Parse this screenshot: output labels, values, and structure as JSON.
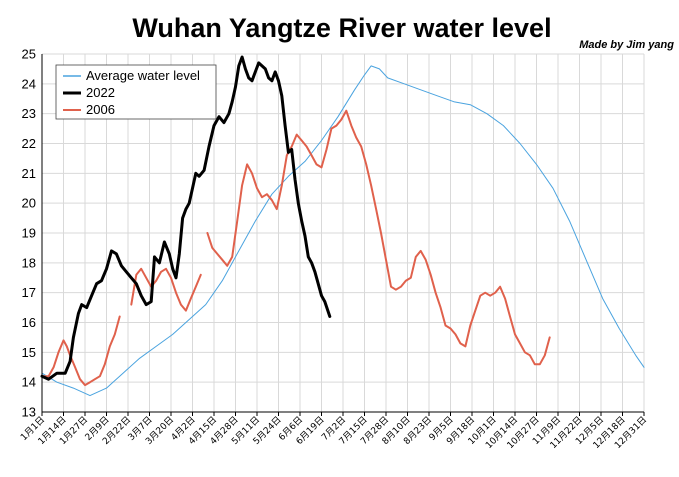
{
  "chart_data": {
    "type": "line",
    "title": "Wuhan Yangtze River water level",
    "credit": "Made by Jim yang",
    "xlabel": "",
    "ylabel": "",
    "ylim": [
      13,
      25
    ],
    "yticks": [
      "13",
      "14",
      "15",
      "16",
      "17",
      "18",
      "19",
      "20",
      "21",
      "22",
      "23",
      "24",
      "25"
    ],
    "xlim": [
      1,
      365
    ],
    "grid": true,
    "legend_position": "top-left",
    "xticks": [
      {
        "day": 1,
        "label": "1月1日"
      },
      {
        "day": 14,
        "label": "1月14日"
      },
      {
        "day": 27,
        "label": "1月27日"
      },
      {
        "day": 40,
        "label": "2月9日"
      },
      {
        "day": 53,
        "label": "2月22日"
      },
      {
        "day": 66,
        "label": "3月7日"
      },
      {
        "day": 79,
        "label": "3月20日"
      },
      {
        "day": 92,
        "label": "4月2日"
      },
      {
        "day": 105,
        "label": "4月15日"
      },
      {
        "day": 118,
        "label": "4月28日"
      },
      {
        "day": 131,
        "label": "5月11日"
      },
      {
        "day": 144,
        "label": "5月24日"
      },
      {
        "day": 157,
        "label": "6月6日"
      },
      {
        "day": 170,
        "label": "6月19日"
      },
      {
        "day": 183,
        "label": "7月2日"
      },
      {
        "day": 196,
        "label": "7月15日"
      },
      {
        "day": 209,
        "label": "7月28日"
      },
      {
        "day": 222,
        "label": "8月10日"
      },
      {
        "day": 235,
        "label": "8月23日"
      },
      {
        "day": 248,
        "label": "9月5日"
      },
      {
        "day": 261,
        "label": "9月18日"
      },
      {
        "day": 274,
        "label": "10月1日"
      },
      {
        "day": 287,
        "label": "10月14日"
      },
      {
        "day": 300,
        "label": "10月27日"
      },
      {
        "day": 313,
        "label": "11月9日"
      },
      {
        "day": 326,
        "label": "11月22日"
      },
      {
        "day": 339,
        "label": "12月5日"
      },
      {
        "day": 352,
        "label": "12月18日"
      },
      {
        "day": 365,
        "label": "12月31日"
      }
    ],
    "series": [
      {
        "name": "Average water level",
        "color": "#4aa3df",
        "width": 1,
        "points": [
          [
            1,
            14.3
          ],
          [
            10,
            14.0
          ],
          [
            20,
            13.8
          ],
          [
            30,
            13.55
          ],
          [
            40,
            13.8
          ],
          [
            50,
            14.3
          ],
          [
            60,
            14.8
          ],
          [
            70,
            15.2
          ],
          [
            80,
            15.6
          ],
          [
            90,
            16.1
          ],
          [
            100,
            16.6
          ],
          [
            110,
            17.4
          ],
          [
            120,
            18.4
          ],
          [
            130,
            19.4
          ],
          [
            140,
            20.3
          ],
          [
            150,
            20.9
          ],
          [
            160,
            21.4
          ],
          [
            170,
            22.1
          ],
          [
            180,
            22.9
          ],
          [
            190,
            23.8
          ],
          [
            196,
            24.3
          ],
          [
            200,
            24.6
          ],
          [
            205,
            24.5
          ],
          [
            210,
            24.2
          ],
          [
            220,
            24.0
          ],
          [
            230,
            23.8
          ],
          [
            240,
            23.6
          ],
          [
            250,
            23.4
          ],
          [
            260,
            23.3
          ],
          [
            270,
            23.0
          ],
          [
            280,
            22.6
          ],
          [
            290,
            22.0
          ],
          [
            300,
            21.3
          ],
          [
            310,
            20.5
          ],
          [
            320,
            19.4
          ],
          [
            330,
            18.1
          ],
          [
            340,
            16.8
          ],
          [
            350,
            15.8
          ],
          [
            360,
            14.9
          ],
          [
            365,
            14.5
          ]
        ]
      },
      {
        "name": "2022",
        "color": "#000000",
        "width": 3,
        "points": [
          [
            1,
            14.2
          ],
          [
            5,
            14.1
          ],
          [
            10,
            14.3
          ],
          [
            15,
            14.3
          ],
          [
            18,
            14.7
          ],
          [
            20,
            15.5
          ],
          [
            23,
            16.3
          ],
          [
            25,
            16.6
          ],
          [
            28,
            16.5
          ],
          [
            31,
            16.9
          ],
          [
            34,
            17.3
          ],
          [
            37,
            17.4
          ],
          [
            40,
            17.8
          ],
          [
            43,
            18.4
          ],
          [
            46,
            18.3
          ],
          [
            49,
            17.9
          ],
          [
            52,
            17.7
          ],
          [
            55,
            17.5
          ],
          [
            58,
            17.3
          ],
          [
            61,
            16.9
          ],
          [
            64,
            16.6
          ],
          [
            67,
            16.7
          ],
          [
            69,
            18.2
          ],
          [
            72,
            18.0
          ],
          [
            75,
            18.7
          ],
          [
            78,
            18.3
          ],
          [
            80,
            17.8
          ],
          [
            82,
            17.5
          ],
          [
            84,
            18.3
          ],
          [
            86,
            19.5
          ],
          [
            88,
            19.8
          ],
          [
            90,
            20.0
          ],
          [
            92,
            20.5
          ],
          [
            94,
            21.0
          ],
          [
            96,
            20.9
          ],
          [
            99,
            21.1
          ],
          [
            102,
            21.9
          ],
          [
            105,
            22.6
          ],
          [
            108,
            22.9
          ],
          [
            111,
            22.7
          ],
          [
            114,
            23.0
          ],
          [
            116,
            23.4
          ],
          [
            118,
            23.9
          ],
          [
            120,
            24.6
          ],
          [
            122,
            24.9
          ],
          [
            124,
            24.5
          ],
          [
            126,
            24.2
          ],
          [
            128,
            24.1
          ],
          [
            130,
            24.4
          ],
          [
            132,
            24.7
          ],
          [
            134,
            24.6
          ],
          [
            136,
            24.5
          ],
          [
            138,
            24.2
          ],
          [
            140,
            24.1
          ],
          [
            142,
            24.4
          ],
          [
            144,
            24.1
          ],
          [
            146,
            23.6
          ],
          [
            148,
            22.6
          ],
          [
            150,
            21.7
          ],
          [
            152,
            21.8
          ],
          [
            154,
            20.8
          ],
          [
            156,
            20.0
          ],
          [
            158,
            19.4
          ],
          [
            160,
            18.9
          ],
          [
            162,
            18.2
          ],
          [
            164,
            18.0
          ],
          [
            166,
            17.7
          ],
          [
            168,
            17.3
          ],
          [
            170,
            16.9
          ],
          [
            172,
            16.7
          ],
          [
            175,
            16.2
          ]
        ]
      },
      {
        "name": "2006",
        "color": "#e0614c",
        "width": 2,
        "segments": [
          [
            [
              1,
              14.2
            ],
            [
              5,
              14.2
            ],
            [
              8,
              14.5
            ],
            [
              11,
              15.0
            ],
            [
              14,
              15.4
            ],
            [
              16,
              15.2
            ],
            [
              18,
              14.9
            ],
            [
              21,
              14.5
            ],
            [
              24,
              14.1
            ],
            [
              27,
              13.9
            ],
            [
              30,
              14.0
            ],
            [
              33,
              14.1
            ],
            [
              36,
              14.2
            ],
            [
              39,
              14.6
            ],
            [
              42,
              15.2
            ],
            [
              45,
              15.6
            ],
            [
              48,
              16.2
            ]
          ],
          [
            [
              55,
              16.6
            ],
            [
              58,
              17.6
            ],
            [
              61,
              17.8
            ],
            [
              64,
              17.5
            ],
            [
              67,
              17.2
            ],
            [
              70,
              17.4
            ],
            [
              73,
              17.7
            ],
            [
              76,
              17.8
            ],
            [
              79,
              17.5
            ],
            [
              82,
              17.0
            ],
            [
              85,
              16.6
            ],
            [
              88,
              16.4
            ],
            [
              91,
              16.8
            ],
            [
              94,
              17.2
            ],
            [
              97,
              17.6
            ]
          ],
          [
            [
              101,
              19.0
            ],
            [
              104,
              18.5
            ],
            [
              107,
              18.3
            ],
            [
              110,
              18.1
            ],
            [
              113,
              17.9
            ],
            [
              116,
              18.2
            ],
            [
              119,
              19.4
            ],
            [
              122,
              20.6
            ],
            [
              125,
              21.3
            ],
            [
              128,
              21.0
            ],
            [
              131,
              20.5
            ],
            [
              134,
              20.2
            ],
            [
              137,
              20.3
            ],
            [
              140,
              20.1
            ],
            [
              143,
              19.8
            ],
            [
              146,
              20.6
            ],
            [
              149,
              21.6
            ],
            [
              152,
              21.9
            ],
            [
              155,
              22.3
            ],
            [
              158,
              22.1
            ],
            [
              161,
              21.9
            ],
            [
              164,
              21.6
            ],
            [
              167,
              21.3
            ],
            [
              170,
              21.2
            ],
            [
              173,
              21.8
            ],
            [
              176,
              22.5
            ],
            [
              179,
              22.6
            ],
            [
              182,
              22.8
            ],
            [
              185,
              23.1
            ],
            [
              188,
              22.6
            ],
            [
              191,
              22.2
            ],
            [
              194,
              21.9
            ],
            [
              197,
              21.3
            ],
            [
              200,
              20.6
            ],
            [
              203,
              19.8
            ],
            [
              206,
              19.0
            ],
            [
              209,
              18.1
            ],
            [
              212,
              17.2
            ],
            [
              215,
              17.1
            ],
            [
              218,
              17.2
            ],
            [
              221,
              17.4
            ],
            [
              224,
              17.5
            ],
            [
              227,
              18.2
            ],
            [
              230,
              18.4
            ],
            [
              233,
              18.1
            ],
            [
              236,
              17.6
            ],
            [
              239,
              17.0
            ],
            [
              242,
              16.5
            ],
            [
              245,
              15.9
            ],
            [
              248,
              15.8
            ],
            [
              251,
              15.6
            ],
            [
              254,
              15.3
            ],
            [
              257,
              15.2
            ],
            [
              260,
              15.9
            ],
            [
              263,
              16.4
            ],
            [
              266,
              16.9
            ],
            [
              269,
              17.0
            ],
            [
              272,
              16.9
            ],
            [
              275,
              17.0
            ],
            [
              278,
              17.2
            ],
            [
              281,
              16.8
            ],
            [
              284,
              16.2
            ],
            [
              287,
              15.6
            ],
            [
              290,
              15.3
            ],
            [
              293,
              15.0
            ],
            [
              296,
              14.9
            ],
            [
              299,
              14.6
            ],
            [
              302,
              14.6
            ],
            [
              305,
              14.9
            ],
            [
              308,
              15.5
            ]
          ]
        ]
      }
    ]
  }
}
